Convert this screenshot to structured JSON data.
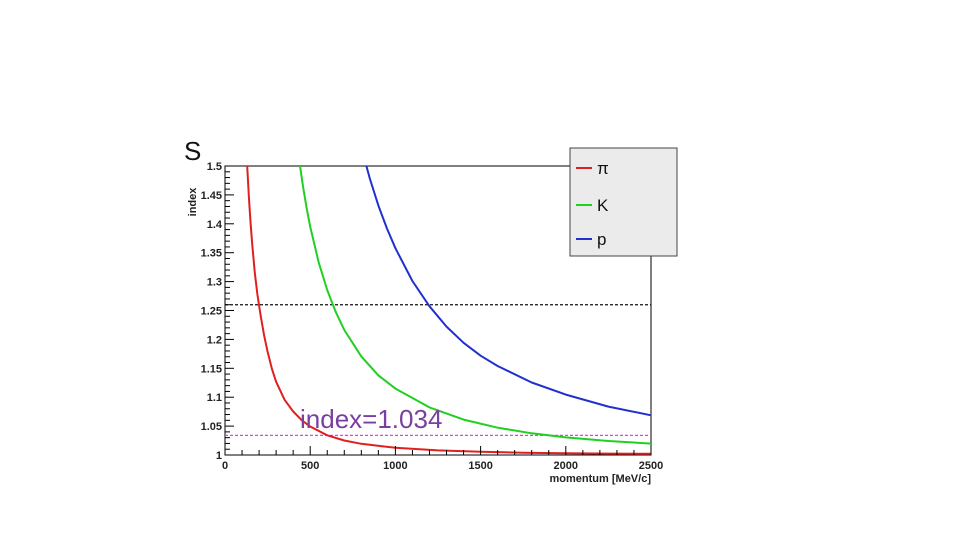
{
  "chart_data": {
    "type": "line",
    "corner_label": "S",
    "title": "",
    "xlabel": "momentum [MeV/c]",
    "ylabel": "index",
    "xlim": [
      0,
      2500
    ],
    "ylim": [
      1.0,
      1.5
    ],
    "x_ticks": [
      "0",
      "500",
      "1000",
      "1500",
      "2000",
      "2500"
    ],
    "y_ticks": [
      "1",
      "1.05",
      "1.1",
      "1.15",
      "1.2",
      "1.25",
      "1.3",
      "1.35",
      "1.4",
      "1.45",
      "1.5"
    ],
    "grid": false,
    "legend_position": "top-right",
    "series": [
      {
        "name": "π",
        "color": "#e02020",
        "x": [
          130,
          140,
          150,
          160,
          175,
          190,
          210,
          230,
          250,
          275,
          300,
          350,
          400,
          450,
          500,
          600,
          700,
          800,
          1000,
          1250,
          1500,
          1750,
          2000,
          2250,
          2500
        ],
        "y": [
          1.5,
          1.4459,
          1.4006,
          1.3629,
          1.3153,
          1.2778,
          1.2395,
          1.2062,
          1.1785,
          1.1492,
          1.1268,
          1.0955,
          1.0752,
          1.0602,
          1.0493,
          1.0341,
          1.0251,
          1.0193,
          1.0124,
          1.0079,
          1.0055,
          1.004,
          1.0031,
          1.0024,
          1.002
        ]
      },
      {
        "name": "K",
        "color": "#20d020",
        "x": [
          440,
          460,
          480,
          500,
          550,
          600,
          650,
          700,
          800,
          900,
          1000,
          1200,
          1400,
          1600,
          1800,
          2000,
          2250,
          2500
        ],
        "y": [
          1.5,
          1.4604,
          1.4258,
          1.395,
          1.3333,
          1.2854,
          1.2472,
          1.2163,
          1.1706,
          1.1378,
          1.1149,
          1.0823,
          1.0612,
          1.0473,
          1.0376,
          1.0305,
          1.0242,
          1.0197
        ]
      },
      {
        "name": "p",
        "color": "#2030d0",
        "x": [
          830,
          850,
          900,
          950,
          1000,
          1100,
          1200,
          1300,
          1400,
          1500,
          1600,
          1800,
          2000,
          2250,
          2500
        ],
        "y": [
          1.5,
          1.4784,
          1.4315,
          1.3921,
          1.3577,
          1.3011,
          1.2572,
          1.2221,
          1.1941,
          1.1718,
          1.1539,
          1.1255,
          1.1045,
          1.0838,
          1.0687
        ]
      }
    ],
    "reference_lines": [
      {
        "y": 1.26,
        "color": "#111111",
        "style": "dashed"
      },
      {
        "y": 1.034,
        "color": "#e040e0",
        "style": "dashed"
      }
    ],
    "annotations": [
      {
        "text": "index=1.034",
        "x": 450,
        "y": 1.034,
        "color": "#7a3fa0"
      }
    ]
  }
}
